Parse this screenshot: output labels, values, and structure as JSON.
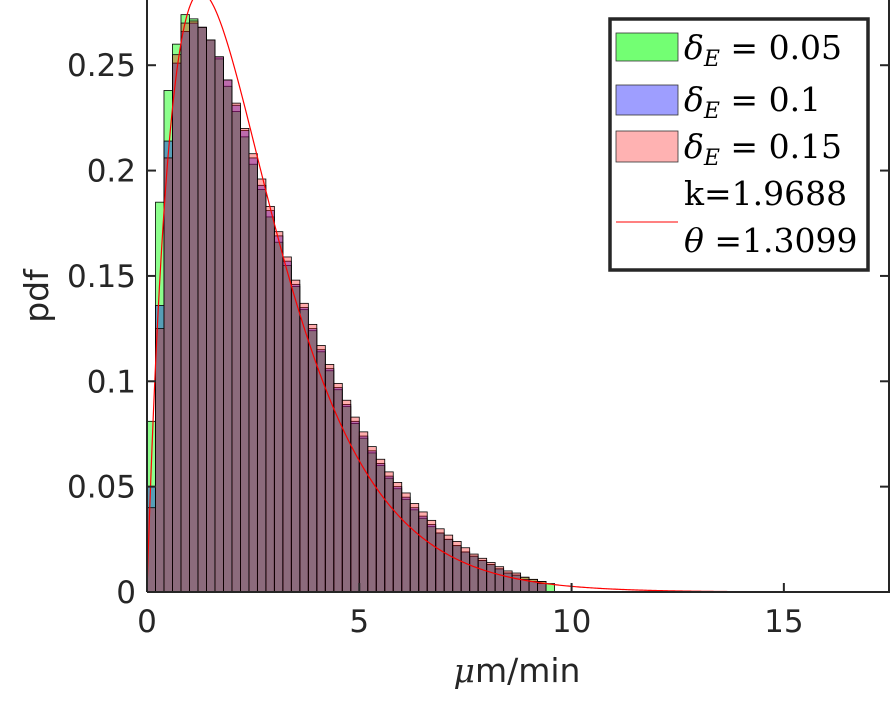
{
  "chart_data": {
    "type": "bar",
    "xlabel_prefix": "μ",
    "xlabel_suffix": "m/min",
    "ylabel": "pdf",
    "xlim": [
      0,
      17.5
    ],
    "ylim": [
      0,
      0.28
    ],
    "xticks": [
      0,
      5,
      10,
      15
    ],
    "xtick_labels": [
      "0",
      "5",
      "10",
      "15"
    ],
    "yticks": [
      0,
      0.05,
      0.1,
      0.15,
      0.2,
      0.25
    ],
    "ytick_labels": [
      "0",
      "0.05",
      "0.1",
      "0.15",
      "0.2",
      "0.25"
    ],
    "grid": false,
    "legend_position": "top-right",
    "bin_width": 0.2,
    "series": [
      {
        "legend_symbol": "δ",
        "legend_subscript": "E",
        "legend_value": " = 0.05",
        "color": "#00ff00",
        "alpha": 0.45,
        "x_start": 0.0,
        "values": [
          0.081,
          0.185,
          0.238,
          0.26,
          0.274,
          0.272,
          0.268,
          0.262,
          0.253,
          0.24,
          0.228,
          0.216,
          0.203,
          0.191,
          0.178,
          0.166,
          0.155,
          0.145,
          0.134,
          0.124,
          0.114,
          0.105,
          0.096,
          0.088,
          0.08,
          0.073,
          0.066,
          0.06,
          0.054,
          0.049,
          0.044,
          0.039,
          0.035,
          0.031,
          0.028,
          0.025,
          0.022,
          0.019,
          0.017,
          0.015,
          0.013,
          0.011,
          0.009,
          0.008,
          0.007,
          0.006,
          0.005,
          0.004
        ]
      },
      {
        "legend_symbol": "δ",
        "legend_subscript": "E",
        "legend_value": " = 0.1",
        "color": "#0000ff",
        "alpha": 0.38,
        "x_start": 0.0,
        "values": [
          0.05,
          0.136,
          0.214,
          0.251,
          0.266,
          0.27,
          0.268,
          0.262,
          0.254,
          0.243,
          0.231,
          0.219,
          0.206,
          0.193,
          0.181,
          0.169,
          0.157,
          0.146,
          0.135,
          0.125,
          0.115,
          0.106,
          0.097,
          0.089,
          0.081,
          0.074,
          0.067,
          0.061,
          0.055,
          0.05,
          0.045,
          0.04,
          0.036,
          0.032,
          0.028,
          0.025,
          0.022,
          0.019,
          0.017,
          0.015,
          0.013,
          0.011,
          0.009,
          0.008,
          0.006,
          0.005,
          0.004
        ]
      },
      {
        "legend_symbol": "δ",
        "legend_subscript": "E",
        "legend_value": " = 0.15",
        "color": "#ff0000",
        "alpha": 0.32,
        "x_start": 0.0,
        "values": [
          0.04,
          0.125,
          0.206,
          0.255,
          0.27,
          0.271,
          0.268,
          0.262,
          0.254,
          0.243,
          0.232,
          0.22,
          0.208,
          0.196,
          0.183,
          0.171,
          0.159,
          0.148,
          0.137,
          0.127,
          0.117,
          0.108,
          0.099,
          0.091,
          0.083,
          0.076,
          0.069,
          0.063,
          0.057,
          0.052,
          0.047,
          0.042,
          0.038,
          0.034,
          0.03,
          0.027,
          0.024,
          0.021,
          0.018,
          0.016,
          0.014,
          0.012,
          0.01,
          0.009,
          0.007,
          0.006,
          0.005
        ]
      }
    ],
    "fit": {
      "type": "gamma",
      "color": "#ff0000",
      "k": 1.9688,
      "theta": 1.3099,
      "legend_text_k": "k=1.9688",
      "legend_symbol_theta": "θ",
      "legend_value_theta": " =1.3099"
    }
  }
}
